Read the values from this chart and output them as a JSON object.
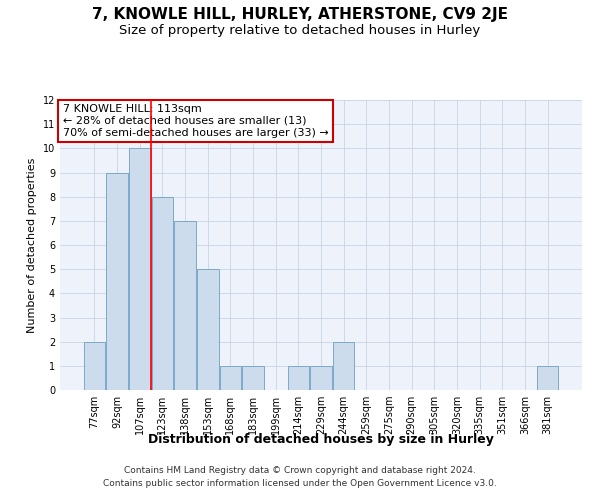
{
  "title": "7, KNOWLE HILL, HURLEY, ATHERSTONE, CV9 2JE",
  "subtitle": "Size of property relative to detached houses in Hurley",
  "xlabel": "Distribution of detached houses by size in Hurley",
  "ylabel": "Number of detached properties",
  "categories": [
    "77sqm",
    "92sqm",
    "107sqm",
    "123sqm",
    "138sqm",
    "153sqm",
    "168sqm",
    "183sqm",
    "199sqm",
    "214sqm",
    "229sqm",
    "244sqm",
    "259sqm",
    "275sqm",
    "290sqm",
    "305sqm",
    "320sqm",
    "335sqm",
    "351sqm",
    "366sqm",
    "381sqm"
  ],
  "values": [
    2,
    9,
    10,
    8,
    7,
    5,
    1,
    1,
    0,
    1,
    1,
    2,
    0,
    0,
    0,
    0,
    0,
    0,
    0,
    0,
    1
  ],
  "bar_color": "#ccdcec",
  "bar_edge_color": "#7aaac8",
  "red_line_x": 2.5,
  "annotation_line1": "7 KNOWLE HILL: 113sqm",
  "annotation_line2": "← 28% of detached houses are smaller (13)",
  "annotation_line3": "70% of semi-detached houses are larger (33) →",
  "annotation_box_color": "#ffffff",
  "annotation_box_edge_color": "#cc0000",
  "ylim": [
    0,
    12
  ],
  "yticks": [
    0,
    1,
    2,
    3,
    4,
    5,
    6,
    7,
    8,
    9,
    10,
    11,
    12
  ],
  "grid_color": "#c8d4e4",
  "background_color": "#eef2fa",
  "footer_line1": "Contains HM Land Registry data © Crown copyright and database right 2024.",
  "footer_line2": "Contains public sector information licensed under the Open Government Licence v3.0.",
  "title_fontsize": 11,
  "subtitle_fontsize": 9.5,
  "xlabel_fontsize": 9,
  "ylabel_fontsize": 8,
  "tick_fontsize": 7,
  "annotation_fontsize": 8,
  "footer_fontsize": 6.5
}
